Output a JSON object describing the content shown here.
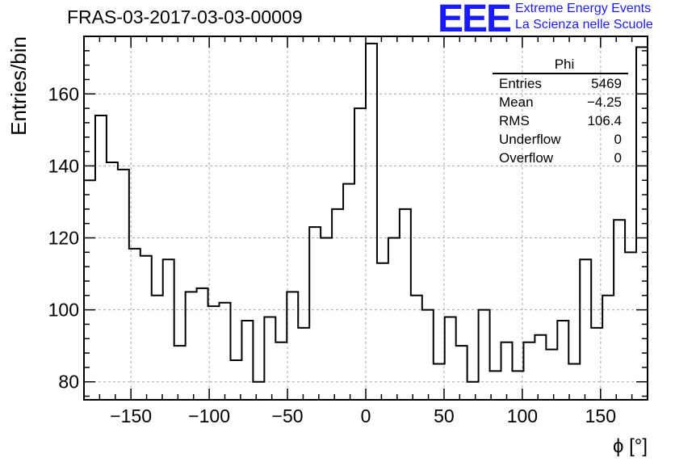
{
  "header": {
    "title": "FRAS-03-2017-03-03-00009",
    "logo_text": "EEE",
    "logo_line1": "Extreme Energy Events",
    "logo_line2": "La Scienza nelle Scuole"
  },
  "stats": {
    "title": "Phi",
    "rows": [
      {
        "label": "Entries",
        "value": "5469"
      },
      {
        "label": "Mean",
        "value": "−4.25"
      },
      {
        "label": "RMS",
        "value": "106.4"
      },
      {
        "label": "Underflow",
        "value": "0"
      },
      {
        "label": "Overflow",
        "value": "0"
      }
    ]
  },
  "colors": {
    "logo": "#1a1aff",
    "line": "#000000",
    "grid": "#aaaaaa"
  },
  "chart_data": {
    "type": "bar",
    "style": "step-histogram",
    "title": "FRAS-03-2017-03-03-00009",
    "xlabel": "ϕ [°]",
    "ylabel": "Entries/bin",
    "xlim": [
      -180,
      180
    ],
    "ylim": [
      75,
      176
    ],
    "bin_width": 7.2,
    "grid": true,
    "xticks": [
      -150,
      -100,
      -50,
      0,
      50,
      100,
      150
    ],
    "xtick_labels": [
      "−150",
      "−100",
      "−50",
      "0",
      "50",
      "100",
      "150"
    ],
    "yticks": [
      80,
      100,
      120,
      140,
      160
    ],
    "ytick_labels": [
      "80",
      "100",
      "120",
      "140",
      "160"
    ],
    "series": [
      {
        "values": [
          136,
          154,
          141,
          139,
          117,
          115,
          104,
          114,
          90,
          105,
          106,
          101,
          102,
          86,
          97,
          80,
          98,
          91,
          105,
          95,
          123,
          120,
          128,
          135,
          156,
          174,
          113,
          120,
          128,
          104,
          100,
          85,
          98,
          90,
          80,
          100,
          83,
          91,
          83,
          91,
          93,
          89,
          97,
          85,
          114,
          95,
          104,
          125,
          116,
          173
        ]
      }
    ]
  }
}
